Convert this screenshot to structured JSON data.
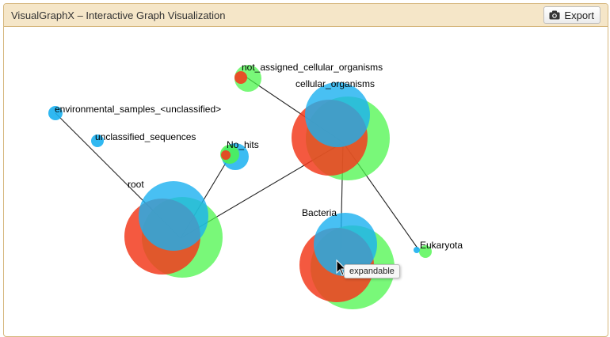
{
  "window": {
    "title": "VisualGraphX – Interactive Graph Visualization",
    "export_label": "Export"
  },
  "tooltip": {
    "text": "expandable"
  },
  "colors": {
    "red": "#f23c1e",
    "green": "#4cf54c",
    "blue": "#1ab0f0",
    "edge": "#222222"
  },
  "nodes": [
    {
      "id": "root",
      "label": "root"
    },
    {
      "id": "cellular_organisms",
      "label": "cellular_organisms"
    },
    {
      "id": "not_assigned",
      "label": "not_assigned_cellular_organisms"
    },
    {
      "id": "env_samples",
      "label": "environmental_samples_<unclassified>"
    },
    {
      "id": "unclassified",
      "label": "unclassified_sequences"
    },
    {
      "id": "no_hits",
      "label": "No_hits"
    },
    {
      "id": "bacteria",
      "label": "Bacteria"
    },
    {
      "id": "eukaryota",
      "label": "Eukaryota"
    }
  ]
}
